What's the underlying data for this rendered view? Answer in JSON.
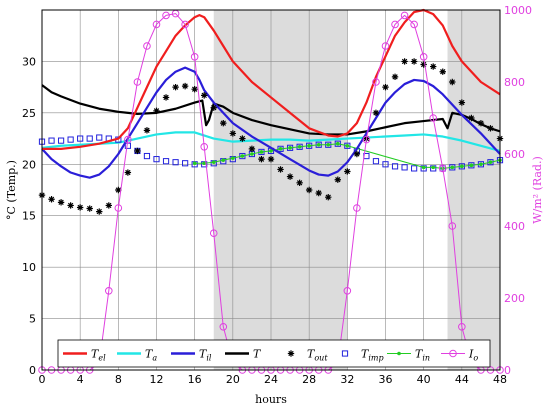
{
  "chart_data": {
    "type": "line",
    "xlabel": "hours",
    "ylabel_left": "°C (Temp.)",
    "ylabel_right": "W/m² (Rad.)",
    "xlim": [
      0,
      48
    ],
    "ylim_left": [
      0,
      35
    ],
    "ylim_right": [
      0,
      1000
    ],
    "x_ticks": [
      "0",
      "4",
      "8",
      "12",
      "16",
      "20",
      "24",
      "28",
      "32",
      "36",
      "40",
      "44",
      "48"
    ],
    "y_ticks_left": [
      "0",
      "5",
      "10",
      "15",
      "20",
      "25",
      "30"
    ],
    "y_ticks_right": [
      "0",
      "200",
      "400",
      "600",
      "800",
      "1000"
    ],
    "grid": true,
    "shaded_regions": [
      [
        18,
        32
      ],
      [
        42.5,
        48
      ]
    ],
    "legend_position": "bottom",
    "series": [
      {
        "name": "T_el",
        "sub": "el",
        "color": "#f01e1e",
        "axis": "left",
        "style": "line",
        "x": [
          0,
          2,
          4,
          6,
          8,
          9,
          10,
          11,
          12,
          13,
          14,
          15,
          16,
          16.5,
          17,
          18,
          19,
          20,
          22,
          24,
          26,
          28,
          30,
          31,
          32,
          33,
          34,
          35,
          36,
          37,
          38,
          39,
          40,
          41,
          42,
          43,
          44,
          46,
          48
        ],
        "y": [
          21.5,
          21.5,
          21.7,
          22,
          22.5,
          23.5,
          25.5,
          27.5,
          29.5,
          31,
          32.5,
          33.5,
          34.3,
          34.5,
          34.3,
          33,
          31.5,
          30,
          28,
          26.5,
          25,
          23.5,
          22.8,
          22.7,
          23,
          24,
          26,
          28.5,
          30.5,
          32.5,
          33.8,
          34.8,
          35,
          34.6,
          33.5,
          31.5,
          30,
          28,
          26.8
        ]
      },
      {
        "name": "T_a",
        "sub": "a",
        "color": "#22e6e6",
        "axis": "left",
        "style": "line",
        "x": [
          0,
          2,
          4,
          6,
          8,
          10,
          12,
          14,
          16,
          18,
          20,
          22,
          24,
          26,
          28,
          30,
          32,
          34,
          36,
          38,
          40,
          42,
          44,
          46,
          48
        ],
        "y": [
          21.6,
          21.8,
          21.9,
          22,
          22.1,
          22.5,
          22.9,
          23.1,
          23.1,
          22.5,
          22.2,
          22.3,
          22.4,
          22.4,
          22.3,
          22.4,
          22.5,
          22.6,
          22.7,
          22.8,
          22.9,
          22.7,
          22.3,
          21.8,
          21.3
        ]
      },
      {
        "name": "T_il",
        "sub": "il",
        "color": "#2a1ed8",
        "axis": "left",
        "style": "line",
        "x": [
          0,
          1,
          2,
          3,
          4,
          5,
          6,
          7,
          8,
          9,
          10,
          11,
          12,
          13,
          14,
          15,
          16,
          16.5,
          17,
          18,
          19,
          20,
          22,
          24,
          26,
          28,
          29,
          30,
          31,
          32,
          33,
          34,
          35,
          36,
          37,
          38,
          39,
          40,
          41,
          42,
          43,
          44,
          46,
          48
        ],
        "y": [
          21.5,
          20.5,
          19.8,
          19.2,
          18.9,
          18.7,
          19,
          19.8,
          21,
          22.5,
          24,
          25.5,
          27,
          28.2,
          29,
          29.4,
          29,
          28.2,
          27.2,
          26,
          25,
          24,
          22.7,
          21.6,
          20.5,
          19.4,
          19,
          18.9,
          19.3,
          20.2,
          21.5,
          23,
          24.5,
          26,
          27,
          27.8,
          28.2,
          28.1,
          27.6,
          26.8,
          25.8,
          24.8,
          23,
          21
        ]
      },
      {
        "name": "T",
        "sub": "",
        "color": "#000000",
        "axis": "left",
        "style": "line",
        "x": [
          0,
          1,
          2,
          4,
          6,
          8,
          10,
          12,
          14,
          16,
          16.8,
          17.2,
          17.5,
          18,
          19,
          20,
          22,
          24,
          26,
          28,
          30,
          32,
          34,
          36,
          38,
          40,
          42,
          42.5,
          43,
          44,
          45,
          46,
          47,
          48
        ],
        "y": [
          27.7,
          27,
          26.6,
          25.9,
          25.4,
          25.1,
          24.9,
          25,
          25.4,
          26,
          26.2,
          23.8,
          24.3,
          25.9,
          25.6,
          25,
          24.3,
          23.8,
          23.4,
          23,
          22.9,
          22.9,
          23.2,
          23.6,
          24,
          24.2,
          24.4,
          23.5,
          25,
          24.8,
          24.4,
          23.9,
          23.5,
          23.2
        ]
      },
      {
        "name": "T_out",
        "sub": "out",
        "color": "#000000",
        "axis": "left",
        "style": "star",
        "x": [
          0,
          1,
          2,
          3,
          4,
          5,
          6,
          7,
          8,
          9,
          10,
          11,
          12,
          13,
          14,
          15,
          16,
          17,
          18,
          19,
          20,
          21,
          22,
          23,
          24,
          25,
          26,
          27,
          28,
          29,
          30,
          31,
          32,
          33,
          34,
          35,
          36,
          37,
          38,
          39,
          40,
          41,
          42,
          43,
          44,
          45,
          46,
          47,
          48
        ],
        "y": [
          17,
          16.6,
          16.3,
          16,
          15.8,
          15.7,
          15.4,
          16,
          17.5,
          19.2,
          21.3,
          23.3,
          25.2,
          26.5,
          27.5,
          27.6,
          27.3,
          26.7,
          25.5,
          24,
          23,
          22.5,
          21.5,
          20.5,
          20.5,
          19.5,
          18.8,
          18.2,
          17.5,
          17.2,
          16.8,
          18.5,
          19.3,
          21,
          22.5,
          25,
          27.5,
          28.5,
          30,
          30,
          29.7,
          29.5,
          29,
          28,
          26,
          24.5,
          24,
          23.5,
          22.5
        ]
      },
      {
        "name": "T_imp",
        "sub": "imp",
        "color": "#2222dd",
        "axis": "left",
        "style": "square",
        "x": [
          0,
          1,
          2,
          3,
          4,
          5,
          6,
          7,
          8,
          9,
          10,
          11,
          12,
          13,
          14,
          15,
          16,
          17,
          18,
          19,
          20,
          21,
          22,
          23,
          24,
          25,
          26,
          27,
          28,
          29,
          30,
          31,
          32,
          33,
          34,
          35,
          36,
          37,
          38,
          39,
          40,
          41,
          42,
          43,
          44,
          45,
          46,
          47,
          48
        ],
        "y": [
          22.2,
          22.3,
          22.3,
          22.4,
          22.5,
          22.5,
          22.6,
          22.5,
          22.4,
          21.8,
          21.3,
          20.8,
          20.5,
          20.3,
          20.2,
          20.1,
          20,
          20,
          20.1,
          20.3,
          20.5,
          20.8,
          21,
          21.2,
          21.3,
          21.5,
          21.6,
          21.7,
          21.8,
          21.9,
          21.9,
          22,
          21.8,
          21.3,
          20.8,
          20.3,
          20,
          19.8,
          19.7,
          19.6,
          19.6,
          19.6,
          19.6,
          19.7,
          19.8,
          19.9,
          20,
          20.2,
          20.4
        ]
      },
      {
        "name": "T_in",
        "sub": "in",
        "color": "#22cc22",
        "axis": "left",
        "style": "dotline",
        "x": [
          16,
          17,
          18,
          19,
          20,
          21,
          22,
          23,
          24,
          25,
          26,
          27,
          28,
          29,
          30,
          31,
          32,
          40,
          41,
          42,
          43,
          44,
          45,
          46,
          47,
          48
        ],
        "y": [
          20.1,
          20.1,
          20.2,
          20.4,
          20.6,
          20.8,
          21,
          21.2,
          21.3,
          21.5,
          21.6,
          21.7,
          21.8,
          21.9,
          21.9,
          22,
          21.8,
          19.7,
          19.7,
          19.6,
          19.7,
          19.8,
          19.9,
          20,
          20.2,
          20.4
        ]
      },
      {
        "name": "I_o",
        "sub": "o",
        "color": "#e040e0",
        "axis": "right",
        "style": "circleline",
        "x": [
          0,
          1,
          2,
          3,
          4,
          5,
          6,
          7,
          8,
          9,
          10,
          11,
          12,
          13,
          14,
          15,
          16,
          17,
          18,
          19,
          20,
          21,
          22,
          23,
          24,
          25,
          26,
          27,
          28,
          29,
          30,
          31,
          32,
          33,
          34,
          35,
          36,
          37,
          38,
          39,
          40,
          41,
          42,
          43,
          44,
          45,
          46,
          47,
          48
        ],
        "y": [
          0,
          0,
          0,
          0,
          0,
          0,
          20,
          220,
          450,
          640,
          800,
          900,
          960,
          985,
          990,
          960,
          870,
          620,
          380,
          120,
          20,
          0,
          0,
          0,
          0,
          0,
          0,
          0,
          0,
          0,
          0,
          20,
          220,
          450,
          640,
          800,
          900,
          960,
          985,
          960,
          870,
          700,
          560,
          400,
          120,
          20,
          0,
          0,
          0
        ]
      }
    ]
  }
}
